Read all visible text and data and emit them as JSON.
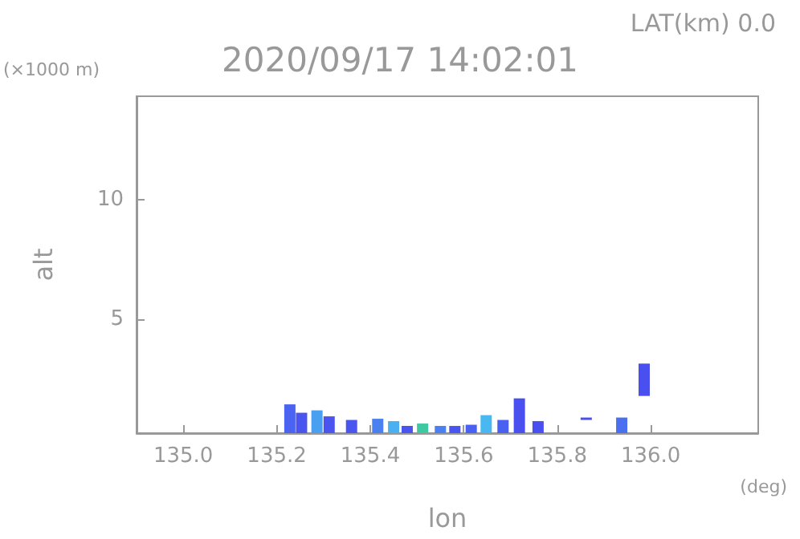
{
  "chart_data": {
    "type": "bar",
    "title": "2020/09/17 14:02:01",
    "subtitle": "LAT(km) 0.0",
    "xlabel": "lon",
    "ylabel": "alt",
    "annotations": [
      "(×1000 m)",
      "(deg)"
    ],
    "x": [
      135.228,
      135.253,
      135.286,
      135.312,
      135.36,
      135.416,
      135.45,
      135.479,
      135.512,
      135.55,
      135.581,
      135.616,
      135.648,
      135.684,
      135.719,
      135.759,
      135.862,
      135.938,
      135.986
    ],
    "base": [
      0.25,
      0.25,
      0.25,
      0.25,
      0.25,
      0.25,
      0.25,
      0.25,
      0.25,
      0.25,
      0.25,
      0.25,
      0.25,
      0.25,
      0.25,
      0.25,
      0.8,
      0.25,
      1.8
    ],
    "values": [
      1.2,
      0.85,
      0.95,
      0.7,
      0.55,
      0.6,
      0.5,
      0.3,
      0.4,
      0.3,
      0.3,
      0.35,
      0.75,
      0.55,
      1.45,
      0.5,
      0.1,
      0.65,
      1.35
    ],
    "colors": [
      "#4a63f0",
      "#4a55f0",
      "#4aa0f0",
      "#4a55f0",
      "#4a55f0",
      "#4a80f0",
      "#4ab0f0",
      "#4a55f0",
      "#40c8a0",
      "#4a80f0",
      "#4a55f0",
      "#4a60f0",
      "#4ab8f0",
      "#4a60f0",
      "#4a50f0",
      "#4a50f0",
      "#4a50f0",
      "#4a70f0",
      "#4a50f0"
    ],
    "xlim": [
      134.9,
      136.23
    ],
    "ylim": [
      0.25,
      14.3
    ],
    "xticks": [
      {
        "value": 135,
        "label": "135.0"
      },
      {
        "value": 135.2,
        "label": "135.2"
      },
      {
        "value": 135.4,
        "label": "135.4"
      },
      {
        "value": 135.6,
        "label": "135.6"
      },
      {
        "value": 135.8,
        "label": "135.8"
      },
      {
        "value": 136,
        "label": "136.0"
      }
    ],
    "yticks": [
      5,
      10
    ]
  }
}
